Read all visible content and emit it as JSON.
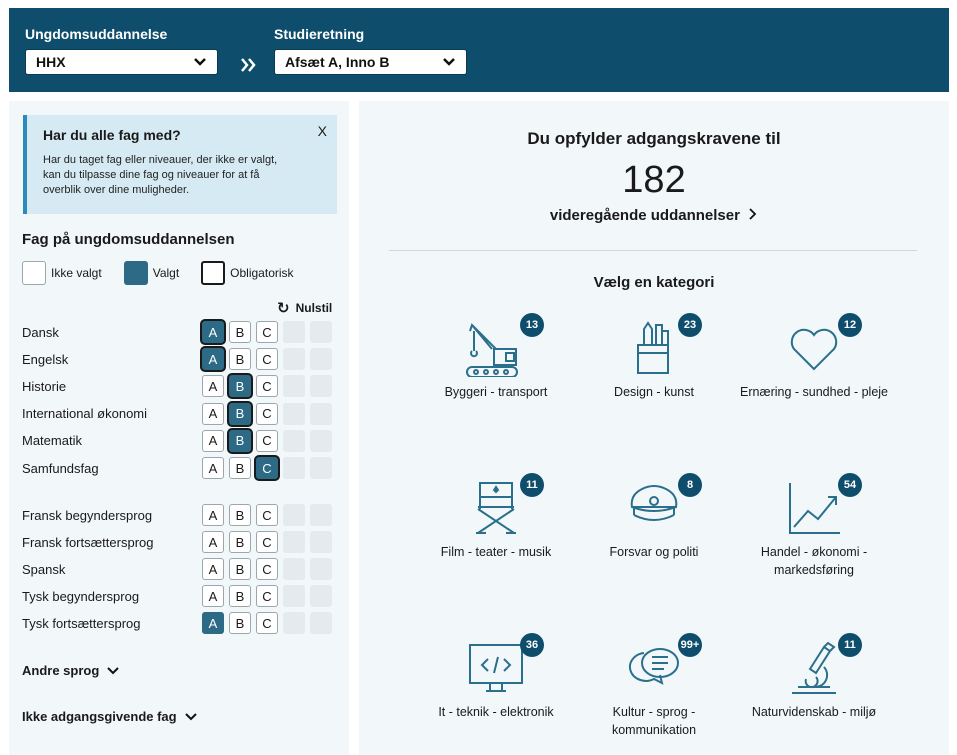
{
  "header": {
    "edu_label": "Ungdomsuddannelse",
    "edu_value": "HHX",
    "track_label": "Studieretning",
    "track_value": "Afsæt A, Inno B"
  },
  "info": {
    "title": "Har du alle fag med?",
    "text": "Har du taget fag eller niveauer, der ikke er valgt, kan du tilpasse dine fag og niveauer for at få overblik over dine muligheder.",
    "close": "X"
  },
  "subjects_section": {
    "title": "Fag på ungdomsuddannelsen",
    "legend_not_selected": "Ikke valgt",
    "legend_selected": "Valgt",
    "legend_mandatory": "Obligatorisk",
    "reset": "Nulstil"
  },
  "subjects": [
    {
      "name": "Dansk",
      "A": "selected-mandatory",
      "B": "",
      "C": ""
    },
    {
      "name": "Engelsk",
      "A": "selected-mandatory",
      "B": "",
      "C": ""
    },
    {
      "name": "Historie",
      "A": "",
      "B": "selected-mandatory",
      "C": ""
    },
    {
      "name": "International økonomi",
      "A": "",
      "B": "selected-mandatory",
      "C": ""
    },
    {
      "name": "Matematik",
      "A": "",
      "B": "selected-mandatory",
      "C": ""
    },
    {
      "name": "Samfundsfag",
      "A": "",
      "B": "",
      "C": "selected-mandatory"
    }
  ],
  "languages": [
    {
      "name": "Fransk begyndersprog",
      "A": "",
      "B": "",
      "C": ""
    },
    {
      "name": "Fransk fortsættersprog",
      "A": "",
      "B": "",
      "C": ""
    },
    {
      "name": "Spansk",
      "A": "",
      "B": "",
      "C": ""
    },
    {
      "name": "Tysk begyndersprog",
      "A": "",
      "B": "",
      "C": ""
    },
    {
      "name": "Tysk fortsættersprog",
      "A": "selected",
      "B": "",
      "C": ""
    }
  ],
  "level_letters": [
    "A",
    "B",
    "C"
  ],
  "other_languages": "Andre sprog",
  "non_qualifying": "Ikke adgangsgivende fag",
  "result": {
    "title": "Du opfylder adgangskravene til",
    "count": "182",
    "link": "videregående uddannelser",
    "category_title": "Vælg en kategori"
  },
  "categories": [
    {
      "label": "Byggeri - transport",
      "count": "13",
      "icon": "crane-icon"
    },
    {
      "label": "Design - kunst",
      "count": "23",
      "icon": "pencil-cup-icon"
    },
    {
      "label": "Ernæring - sundhed - pleje",
      "count": "12",
      "icon": "heart-icon"
    },
    {
      "label": "Film - teater - musik",
      "count": "11",
      "icon": "director-chair-icon"
    },
    {
      "label": "Forsvar og politi",
      "count": "8",
      "icon": "police-cap-icon"
    },
    {
      "label": "Handel - økonomi - markedsføring",
      "count": "54",
      "icon": "trend-chart-icon"
    },
    {
      "label": "It - teknik - elektronik",
      "count": "36",
      "icon": "code-monitor-icon"
    },
    {
      "label": "Kultur - sprog - kommunikation",
      "count": "99+",
      "icon": "speech-bubbles-icon"
    },
    {
      "label": "Naturvidenskab - miljø",
      "count": "11",
      "icon": "microscope-icon"
    }
  ],
  "colors": {
    "brand": "#0e4d6b",
    "selected": "#2d6a86",
    "panel": "#f2f7f9",
    "info": "#d6eaf3"
  }
}
